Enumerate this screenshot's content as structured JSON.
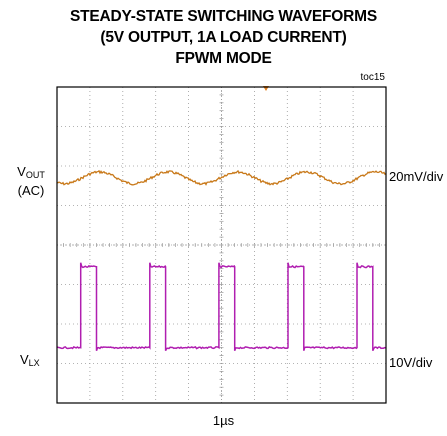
{
  "chart_data": {
    "type": "line",
    "title": [
      "STEADY-STATE SWITCHING WAVEFORMS",
      "(5V OUTPUT, 1A LOAD CURRENT)",
      "FPWM MODE"
    ],
    "figure_id": "toc15",
    "timebase": "1µs",
    "grid": true,
    "divisions": {
      "x": 10,
      "y": 8
    },
    "series": [
      {
        "name": "VOUT (AC)",
        "label_main": "V",
        "label_sub": "OUT",
        "label_extra": "(AC)",
        "scale": "20mV/div",
        "color": "#c87818",
        "baseline_div": 2.3,
        "switch_period_div": 2.1,
        "ripple_amplitude_div": 0.15
      },
      {
        "name": "VLX",
        "label_main": "V",
        "label_sub": "LX",
        "scale": "10V/div",
        "color": "#b01eb0",
        "low_level_div": 6.6,
        "high_level_div": 4.55,
        "first_rise_div": 0.72,
        "switch_period_div": 2.1,
        "high_duration_div": 0.48
      }
    ]
  }
}
